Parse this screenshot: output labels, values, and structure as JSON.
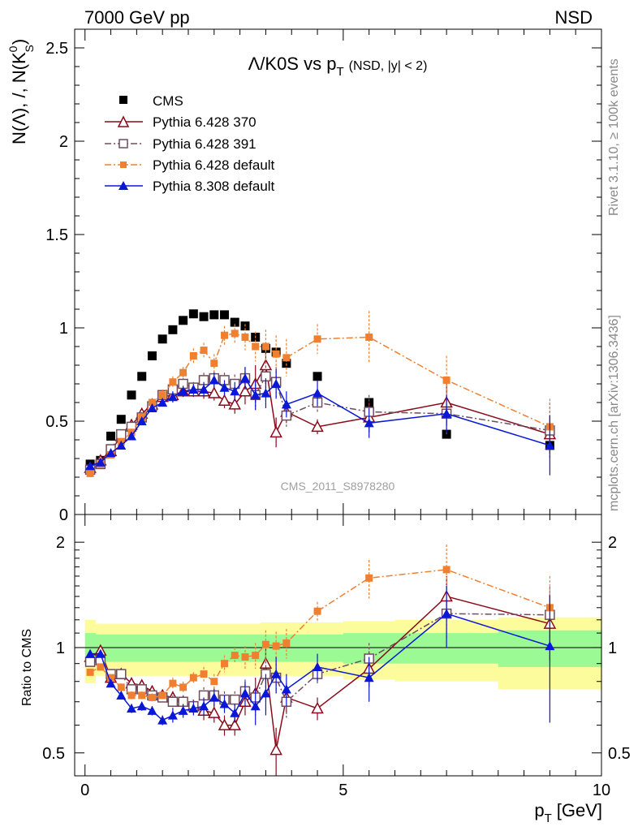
{
  "header": {
    "left": "7000 GeV pp",
    "right": "NSD"
  },
  "side_labels": {
    "rivet": "Rivet 3.1.10, ≥ 100k events",
    "mcplots": "mcplots.cern.ch [arXiv:1306.3436]"
  },
  "watermark": "CMS_2011_S8978280",
  "colors": {
    "cms": "#000000",
    "p370": "#8b0a1a",
    "p391": "#6e4e5e",
    "p6def": "#f08030",
    "p8def": "#0a16d8",
    "band_green": "#9cfa94",
    "band_yellow": "#fcfc9c"
  },
  "chart_data": [
    {
      "type": "scatter",
      "panel": "main",
      "title": "Λ/K0S vs p_T (NSD, |y| < 2)",
      "title_parts": {
        "main": "Λ/K0S vs p",
        "sub": "T",
        "note": "(NSD, |y| < 2)"
      },
      "ylabel": "N(Λ), /, N(K⁰_S)",
      "ylabel_parts": {
        "main": "N(Λ), /, N(K",
        "sup": "0",
        "sub": "S",
        "close": ")"
      },
      "xlim": [
        -0.2,
        10
      ],
      "ylim": [
        0.0,
        2.6
      ],
      "y_ticks": [
        0.5,
        1,
        1.5,
        2,
        2.5
      ],
      "y_tick_labels": [
        "0.5",
        "1",
        "1.5",
        "2",
        "2.5"
      ],
      "y_zero_label": "0",
      "legend_position": "top-left",
      "x": [
        0.1,
        0.3,
        0.5,
        0.7,
        0.9,
        1.1,
        1.3,
        1.5,
        1.7,
        1.9,
        2.1,
        2.3,
        2.5,
        2.7,
        2.9,
        3.1,
        3.3,
        3.5,
        3.7,
        3.9,
        4.5,
        5.5,
        7.0,
        9.0
      ],
      "series": [
        {
          "name": "CMS",
          "marker": "square",
          "y": [
            0.27,
            0.29,
            0.42,
            0.51,
            0.64,
            0.74,
            0.85,
            0.94,
            0.99,
            1.04,
            1.075,
            1.06,
            1.07,
            1.07,
            1.03,
            1.01,
            0.95,
            0.89,
            0.87,
            0.81,
            0.74,
            0.6,
            0.43,
            0.37
          ],
          "err": [
            0,
            0,
            0,
            0,
            0,
            0,
            0,
            0,
            0,
            0,
            0,
            0,
            0,
            0,
            0,
            0,
            0,
            0,
            0,
            0,
            0,
            0.02,
            0.02,
            0
          ]
        },
        {
          "name": "Pythia 6.428 370",
          "marker": "open-triangle",
          "line": "solid",
          "y": [
            0.25,
            0.29,
            0.34,
            0.42,
            0.48,
            0.54,
            0.59,
            0.63,
            0.64,
            0.66,
            0.66,
            0.66,
            0.65,
            0.61,
            0.59,
            0.66,
            0.7,
            0.8,
            0.44,
            0.55,
            0.47,
            0.52,
            0.6,
            0.43
          ],
          "err": [
            0.01,
            0.01,
            0.01,
            0.02,
            0.02,
            0.02,
            0.02,
            0.02,
            0.03,
            0.03,
            0.03,
            0.04,
            0.04,
            0.04,
            0.05,
            0.07,
            0.1,
            0.1,
            0.08,
            0.06,
            0.04,
            0.08,
            0.12,
            0.1
          ]
        },
        {
          "name": "Pythia 6.428 391",
          "marker": "open-square",
          "line": "dash-dot",
          "y": [
            0.24,
            0.27,
            0.35,
            0.43,
            0.47,
            0.52,
            0.58,
            0.64,
            0.67,
            0.7,
            0.68,
            0.72,
            0.73,
            0.72,
            0.7,
            0.73,
            0.64,
            0.74,
            0.71,
            0.53,
            0.6,
            0.55,
            0.54,
            0.45
          ],
          "err": [
            0.01,
            0.01,
            0.01,
            0.02,
            0.02,
            0.02,
            0.02,
            0.02,
            0.03,
            0.03,
            0.03,
            0.04,
            0.04,
            0.04,
            0.05,
            0.06,
            0.08,
            0.08,
            0.08,
            0.06,
            0.05,
            0.09,
            0.12,
            0.15
          ]
        },
        {
          "name": "Pythia 6.428 default",
          "marker": "filled-square-small",
          "line": "dash-dot",
          "y": [
            0.22,
            0.27,
            0.32,
            0.39,
            0.44,
            0.52,
            0.6,
            0.64,
            0.71,
            0.76,
            0.85,
            0.88,
            0.81,
            0.96,
            0.97,
            0.95,
            0.9,
            0.9,
            0.86,
            0.84,
            0.94,
            0.95,
            0.72,
            0.47
          ],
          "err": [
            0.01,
            0.01,
            0.01,
            0.02,
            0.02,
            0.02,
            0.02,
            0.03,
            0.03,
            0.03,
            0.04,
            0.04,
            0.05,
            0.05,
            0.05,
            0.07,
            0.08,
            0.09,
            0.1,
            0.1,
            0.08,
            0.14,
            0.13,
            0.15
          ]
        },
        {
          "name": "Pythia 8.308 default",
          "marker": "filled-triangle",
          "line": "solid",
          "y": [
            0.26,
            0.28,
            0.33,
            0.37,
            0.42,
            0.5,
            0.57,
            0.6,
            0.63,
            0.66,
            0.67,
            0.67,
            0.72,
            0.68,
            0.66,
            0.73,
            0.64,
            0.65,
            0.7,
            0.59,
            0.65,
            0.49,
            0.54,
            0.37
          ],
          "err": [
            0.01,
            0.01,
            0.01,
            0.02,
            0.02,
            0.02,
            0.02,
            0.02,
            0.03,
            0.03,
            0.03,
            0.04,
            0.04,
            0.04,
            0.05,
            0.06,
            0.08,
            0.08,
            0.08,
            0.07,
            0.07,
            0.08,
            0.1,
            0.16
          ]
        }
      ]
    },
    {
      "type": "scatter",
      "panel": "ratio",
      "ylabel": "Ratio to CMS",
      "xlabel": "p_T [GeV]",
      "xlabel_parts": {
        "main": "p",
        "sub": "T",
        "unit": "[GeV]"
      },
      "xlim": [
        -0.2,
        10
      ],
      "ylim": [
        0.43,
        2.4
      ],
      "y_log_scale": true,
      "x_ticks": [
        0,
        5,
        10
      ],
      "x_tick_labels": [
        "0",
        "5",
        "10"
      ],
      "y_ticks": [
        0.5,
        1,
        2
      ],
      "y_tick_labels": [
        "0.5",
        "1",
        "2"
      ],
      "reference_line": 1,
      "uncertainty_bands": {
        "edges": [
          0,
          0.2,
          0.4,
          0.6,
          0.8,
          1.0,
          1.2,
          1.4,
          1.6,
          1.8,
          2.0,
          2.2,
          2.4,
          2.6,
          2.8,
          3.0,
          3.2,
          3.4,
          3.6,
          3.8,
          4.0,
          5.0,
          6.0,
          8.0,
          10.0
        ],
        "green_low": [
          0.9,
          0.91,
          0.91,
          0.91,
          0.91,
          0.91,
          0.91,
          0.91,
          0.91,
          0.91,
          0.91,
          0.91,
          0.91,
          0.91,
          0.91,
          0.91,
          0.91,
          0.91,
          0.91,
          0.91,
          0.91,
          0.9,
          0.9,
          0.88
        ],
        "green_high": [
          1.1,
          1.09,
          1.09,
          1.09,
          1.09,
          1.09,
          1.09,
          1.09,
          1.09,
          1.09,
          1.09,
          1.09,
          1.09,
          1.09,
          1.09,
          1.09,
          1.09,
          1.09,
          1.09,
          1.09,
          1.09,
          1.1,
          1.1,
          1.12
        ],
        "yellow_low": [
          0.79,
          0.83,
          0.83,
          0.83,
          0.83,
          0.83,
          0.83,
          0.83,
          0.83,
          0.83,
          0.83,
          0.83,
          0.83,
          0.83,
          0.83,
          0.83,
          0.83,
          0.83,
          0.83,
          0.83,
          0.83,
          0.81,
          0.8,
          0.76
        ],
        "yellow_high": [
          1.2,
          1.17,
          1.17,
          1.17,
          1.17,
          1.17,
          1.17,
          1.17,
          1.17,
          1.17,
          1.17,
          1.17,
          1.17,
          1.17,
          1.17,
          1.17,
          1.17,
          1.18,
          1.18,
          1.18,
          1.18,
          1.19,
          1.2,
          1.22
        ]
      },
      "x": [
        0.1,
        0.3,
        0.5,
        0.7,
        0.9,
        1.1,
        1.3,
        1.5,
        1.7,
        1.9,
        2.1,
        2.3,
        2.5,
        2.7,
        2.9,
        3.1,
        3.3,
        3.5,
        3.7,
        3.9,
        4.5,
        5.5,
        7.0,
        9.0
      ],
      "series": [
        {
          "name": "Pythia 6.428 370",
          "y": [
            0.94,
            0.98,
            0.82,
            0.84,
            0.79,
            0.78,
            0.75,
            0.73,
            0.72,
            0.7,
            0.68,
            0.66,
            0.65,
            0.6,
            0.6,
            0.7,
            0.74,
            0.9,
            0.51,
            0.72,
            0.67,
            0.87,
            1.4,
            1.17
          ],
          "err": [
            0.01,
            0.01,
            0.01,
            0.02,
            0.02,
            0.02,
            0.02,
            0.02,
            0.03,
            0.03,
            0.03,
            0.04,
            0.04,
            0.04,
            0.04,
            0.06,
            0.08,
            0.1,
            0.08,
            0.07,
            0.05,
            0.1,
            0.2,
            0.25
          ]
        },
        {
          "name": "Pythia 6.428 391",
          "y": [
            0.91,
            0.92,
            0.84,
            0.84,
            0.76,
            0.76,
            0.73,
            0.72,
            0.7,
            0.7,
            0.68,
            0.73,
            0.73,
            0.71,
            0.71,
            0.75,
            0.72,
            0.84,
            0.82,
            0.7,
            0.84,
            0.93,
            1.25,
            1.24
          ],
          "err": [
            0.01,
            0.01,
            0.01,
            0.02,
            0.02,
            0.02,
            0.02,
            0.02,
            0.03,
            0.03,
            0.03,
            0.04,
            0.04,
            0.04,
            0.04,
            0.06,
            0.08,
            0.1,
            0.08,
            0.07,
            0.05,
            0.1,
            0.2,
            0.25
          ]
        },
        {
          "name": "Pythia 6.428 default",
          "y": [
            0.85,
            0.88,
            0.82,
            0.77,
            0.73,
            0.73,
            0.72,
            0.73,
            0.79,
            0.77,
            0.82,
            0.84,
            0.8,
            0.9,
            0.95,
            0.94,
            0.95,
            1.02,
            1.01,
            1.03,
            1.27,
            1.58,
            1.67,
            1.3
          ],
          "err": [
            0.01,
            0.01,
            0.01,
            0.02,
            0.02,
            0.02,
            0.02,
            0.02,
            0.03,
            0.03,
            0.03,
            0.04,
            0.04,
            0.05,
            0.05,
            0.07,
            0.08,
            0.1,
            0.1,
            0.1,
            0.08,
            0.2,
            0.3,
            0.3
          ]
        },
        {
          "name": "Pythia 8.308 default",
          "y": [
            0.96,
            0.96,
            0.79,
            0.73,
            0.67,
            0.68,
            0.66,
            0.62,
            0.64,
            0.66,
            0.67,
            0.68,
            0.72,
            0.69,
            0.65,
            0.74,
            0.68,
            0.74,
            0.84,
            0.76,
            0.88,
            0.82,
            1.25,
            1.01
          ],
          "err": [
            0.01,
            0.01,
            0.01,
            0.02,
            0.02,
            0.02,
            0.02,
            0.02,
            0.03,
            0.03,
            0.03,
            0.04,
            0.04,
            0.04,
            0.04,
            0.06,
            0.08,
            0.1,
            0.1,
            0.08,
            0.08,
            0.12,
            0.25,
            0.4
          ]
        }
      ]
    }
  ]
}
